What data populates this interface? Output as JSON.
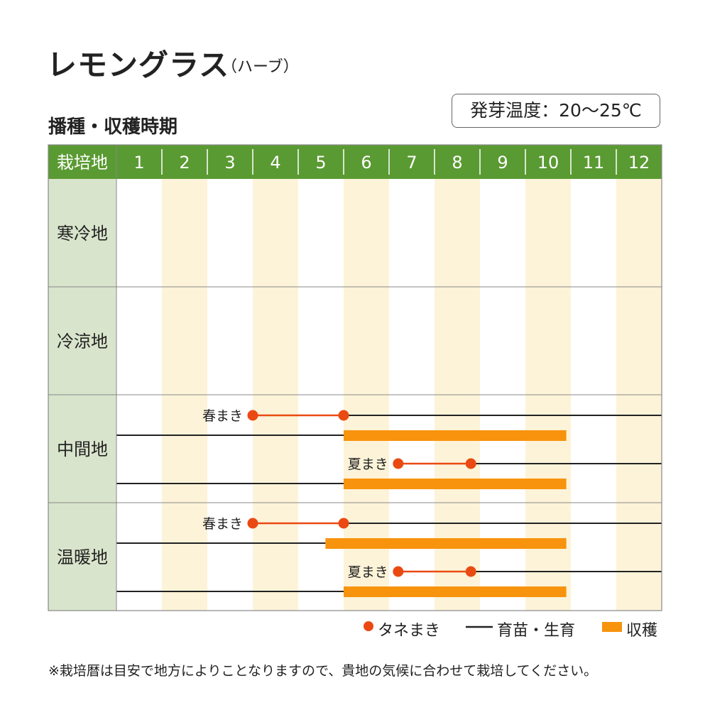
{
  "title": "レモングラス",
  "title_sub": "（ハーブ）",
  "section_title": "播種・収穫時期",
  "germination_temp": "発芽温度：20〜25℃",
  "colors": {
    "header_green": "#5a9a32",
    "region_bg": "#d9e4cc",
    "stripe": "#fdf3d8",
    "sowing": "#ea4a12",
    "growing": "#222222",
    "harvest": "#f7930d",
    "grid": "#888888"
  },
  "legend": {
    "sowing_label": "タネまき",
    "growing_label": "育苗・生育",
    "harvest_label": "収穫"
  },
  "note": "※栽培暦は目安で地方によりことなりますので、貴地の気候に合わせて栽培してください。",
  "chart_data": {
    "type": "gantt",
    "header_label": "栽培地",
    "months": [
      "1",
      "2",
      "3",
      "4",
      "5",
      "6",
      "7",
      "8",
      "9",
      "10",
      "11",
      "12"
    ],
    "regions": [
      {
        "name": "寒冷地",
        "schedules": []
      },
      {
        "name": "冷涼地",
        "schedules": []
      },
      {
        "name": "中間地",
        "schedules": [
          {
            "label": "春まき",
            "sowing": [
              4.0,
              6.0
            ],
            "growing": [
              6.0,
              13.0
            ],
            "harvest_growing": [
              1.0,
              6.0
            ],
            "harvest": [
              6.0,
              10.9
            ]
          },
          {
            "label": "夏まき",
            "sowing": [
              7.2,
              8.8
            ],
            "growing": [
              8.8,
              13.0
            ],
            "harvest_growing": [
              1.0,
              6.0
            ],
            "harvest": [
              6.0,
              10.9
            ]
          }
        ]
      },
      {
        "name": "温暖地",
        "schedules": [
          {
            "label": "春まき",
            "sowing": [
              4.0,
              6.0
            ],
            "growing": [
              6.0,
              13.0
            ],
            "harvest_growing": [
              1.0,
              5.6
            ],
            "harvest": [
              5.6,
              10.9
            ]
          },
          {
            "label": "夏まき",
            "sowing": [
              7.2,
              8.8
            ],
            "growing": [
              8.8,
              13.0
            ],
            "harvest_growing": [
              1.0,
              6.0
            ],
            "harvest": [
              6.0,
              10.9
            ]
          }
        ]
      }
    ]
  }
}
